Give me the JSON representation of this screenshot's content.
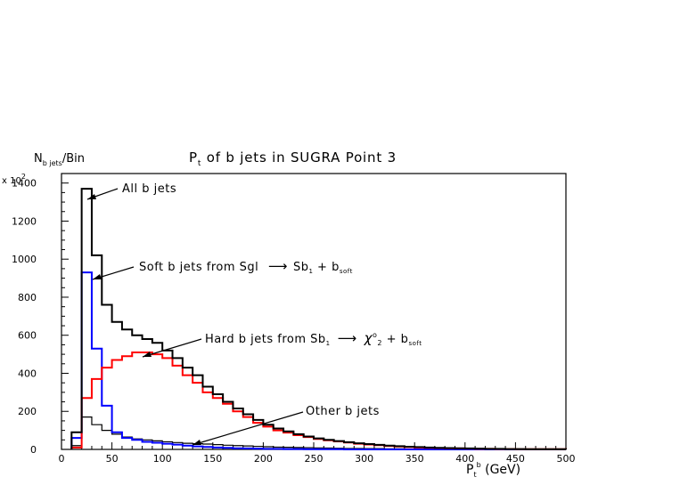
{
  "chart_data": {
    "type": "line",
    "title": "P_t of b jets in SUGRA Point 3",
    "ylabel": "N_b jets/Bin",
    "y_multiplier": "x 10^2",
    "xlabel": "P_t^b (GeV)",
    "xlim": [
      0,
      500
    ],
    "ylim": [
      0,
      1450
    ],
    "x_ticks": [
      0,
      50,
      100,
      150,
      200,
      250,
      300,
      350,
      400,
      450,
      500
    ],
    "y_ticks": [
      0,
      200,
      400,
      600,
      800,
      1000,
      1200,
      1400
    ],
    "bin_width": 10,
    "bins_low_edge": [
      10,
      20,
      30,
      40,
      50,
      60,
      70,
      80,
      90,
      100,
      110,
      120,
      130,
      140,
      150,
      160,
      170,
      180,
      190,
      200,
      210,
      220,
      230,
      240,
      250,
      260,
      270,
      280,
      290,
      300,
      310,
      320,
      330,
      340,
      350,
      360,
      370,
      380,
      390,
      400,
      410,
      420,
      430,
      440,
      450,
      460,
      470,
      480,
      490
    ],
    "series": [
      {
        "name": "All b jets",
        "color": "#000000",
        "values": [
          90,
          1370,
          1020,
          760,
          670,
          630,
          600,
          580,
          560,
          520,
          480,
          430,
          390,
          330,
          290,
          250,
          215,
          185,
          155,
          130,
          110,
          95,
          80,
          68,
          58,
          50,
          44,
          38,
          32,
          28,
          24,
          20,
          17,
          14,
          12,
          10,
          8,
          7,
          6,
          5,
          4,
          3,
          3,
          2,
          2,
          1,
          1,
          1,
          1
        ]
      },
      {
        "name": "Soft b jets from Sgl → Sb1 + b_soft",
        "color": "#0000ff",
        "values": [
          60,
          930,
          530,
          230,
          90,
          60,
          50,
          40,
          35,
          30,
          25,
          20,
          16,
          13,
          10,
          8,
          6,
          5,
          4,
          3,
          3,
          2,
          2,
          1,
          1,
          1,
          1,
          0,
          0,
          0,
          0,
          0,
          0,
          0,
          0,
          0,
          0,
          0,
          0,
          0,
          0,
          0,
          0,
          0,
          0,
          0,
          0,
          0,
          0
        ]
      },
      {
        "name": "Hard b jets from Sb1 → χ°2 + b_soft",
        "color": "#ff0000",
        "values": [
          10,
          270,
          370,
          430,
          470,
          490,
          510,
          510,
          500,
          480,
          440,
          390,
          350,
          300,
          270,
          240,
          200,
          170,
          140,
          120,
          100,
          88,
          75,
          65,
          55,
          48,
          42,
          36,
          30,
          26,
          22,
          18,
          15,
          12,
          10,
          8,
          7,
          6,
          5,
          4,
          3,
          3,
          2,
          2,
          1,
          1,
          1,
          1,
          1
        ]
      },
      {
        "name": "Other b jets",
        "color": "#000000",
        "values": [
          20,
          170,
          130,
          100,
          80,
          65,
          55,
          50,
          45,
          40,
          36,
          32,
          30,
          28,
          25,
          22,
          20,
          18,
          16,
          14,
          12,
          11,
          10,
          9,
          8,
          7,
          6,
          5,
          5,
          4,
          4,
          3,
          3,
          2,
          2,
          2,
          1,
          1,
          1,
          1,
          1,
          1,
          0,
          0,
          0,
          0,
          0,
          0,
          0
        ]
      }
    ],
    "annotations": [
      {
        "text": "All b jets"
      },
      {
        "text": "Soft b jets from Sgl → Sb1 + b_soft"
      },
      {
        "text": "Hard b jets from Sb1 → χ°2 + b_soft"
      },
      {
        "text": "Other b jets"
      }
    ],
    "grid": false,
    "legend": "none"
  }
}
